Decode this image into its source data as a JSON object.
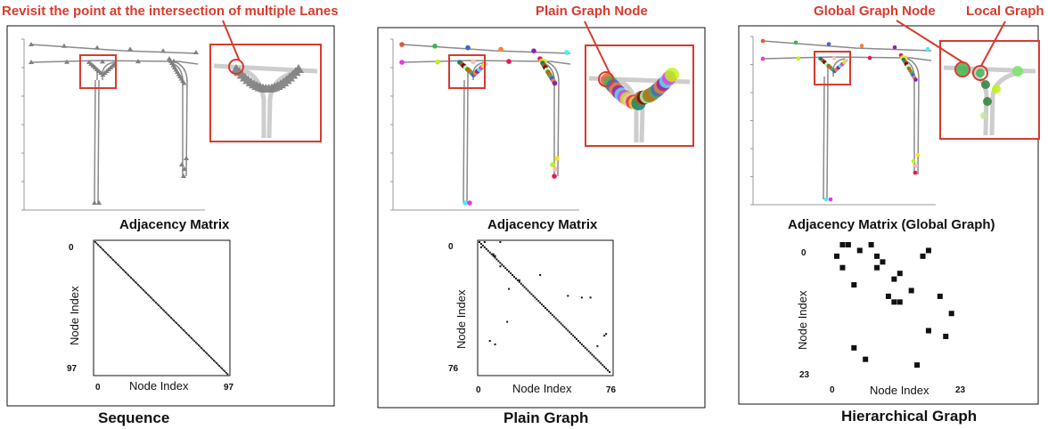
{
  "panels": [
    {
      "id": "sequence",
      "callout": "Revisit the point at the intersection of multiple Lanes",
      "callouts_extra": [],
      "map_label": "Adjacency Matrix",
      "caption": "Sequence",
      "matrix": {
        "n": 97,
        "tick_start": "0",
        "tick_end": "97",
        "xlabel": "Node Index",
        "ylabel": "Node Index",
        "points": []
      }
    },
    {
      "id": "plain",
      "callout": "Plain Graph Node",
      "callouts_extra": [],
      "map_label": "Adjacency Matrix",
      "caption": "Plain Graph",
      "matrix": {
        "n": 76,
        "tick_start": "0",
        "tick_end": "76",
        "xlabel": "Node Index",
        "ylabel": "Node Index",
        "points": [
          [
            3,
            0
          ],
          [
            12,
            0
          ],
          [
            1,
            3
          ],
          [
            8,
            7
          ],
          [
            9,
            8
          ],
          [
            12,
            14
          ],
          [
            35,
            19
          ],
          [
            23,
            22
          ],
          [
            17,
            27
          ],
          [
            51,
            31
          ],
          [
            59,
            32
          ],
          [
            64,
            32
          ],
          [
            16,
            46
          ],
          [
            6,
            57
          ],
          [
            9,
            59
          ],
          [
            73,
            53
          ],
          [
            68,
            60
          ],
          [
            72,
            54
          ]
        ]
      }
    },
    {
      "id": "hierarchical",
      "callout": "Global Graph Node",
      "callouts_extra": [
        "Local Graph"
      ],
      "map_label": "Adjacency Matrix (Global Graph)",
      "caption": "Hierarchical Graph",
      "matrix": {
        "n": 23,
        "tick_start": "0",
        "tick_end": "23",
        "xlabel": "Node Index",
        "ylabel": "Node Index",
        "points": [
          [
            1,
            0
          ],
          [
            6,
            0
          ],
          [
            4,
            1
          ],
          [
            7,
            2
          ],
          [
            0,
            2
          ],
          [
            8,
            3
          ],
          [
            16,
            1
          ],
          [
            15,
            2
          ],
          [
            1,
            4
          ],
          [
            7,
            4
          ],
          [
            3,
            7
          ],
          [
            10,
            6
          ],
          [
            11,
            5
          ],
          [
            13,
            8
          ],
          [
            9,
            9
          ],
          [
            11,
            10
          ],
          [
            10,
            10
          ],
          [
            18,
            9
          ],
          [
            20,
            12
          ],
          [
            16,
            15
          ],
          [
            19,
            16
          ],
          [
            3,
            18
          ],
          [
            5,
            20
          ],
          [
            14,
            21
          ],
          [
            2,
            0
          ]
        ]
      }
    }
  ],
  "colors": {
    "callout": "#d93a2e",
    "road": "#8a8a8a",
    "node_palette": [
      "#e4572e",
      "#3cb44b",
      "#4363d8",
      "#f58231",
      "#911eb4",
      "#46f0f0",
      "#f032e6",
      "#bcf60c",
      "#fabebe",
      "#e6194b",
      "#ffe119",
      "#008080",
      "#9a6324",
      "#800000",
      "#aaffc3",
      "#808000"
    ]
  }
}
